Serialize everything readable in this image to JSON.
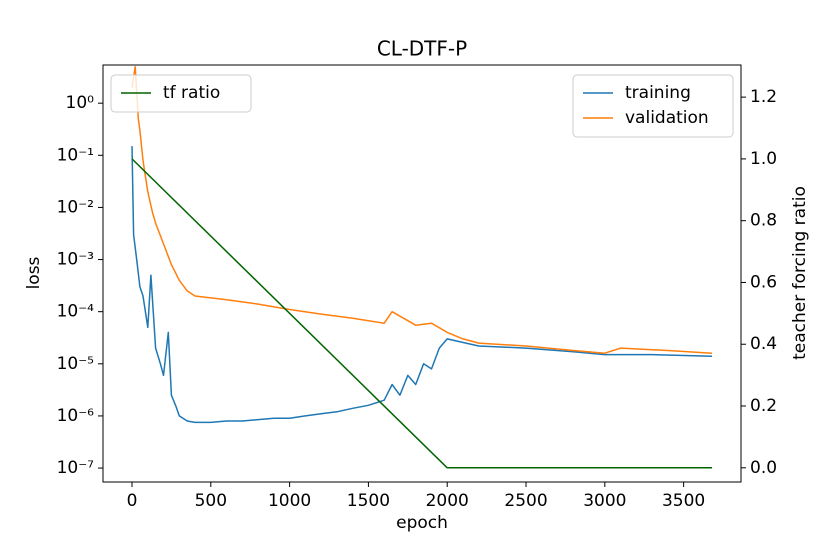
{
  "chart_data": {
    "type": "line",
    "title": "CL-DTF-P",
    "xlabel": "epoch",
    "ylabel": "loss",
    "y2label": "teacher forcing ratio",
    "xlim": [
      -184,
      3864
    ],
    "xticks": [
      0,
      500,
      1000,
      1500,
      2000,
      2500,
      3000,
      3500
    ],
    "ylim": [
      5.4e-08,
      5.4
    ],
    "yscale": "log",
    "yticks": [
      {
        "value": 1,
        "label": "10⁰"
      },
      {
        "value": 0.1,
        "label": "10⁻¹"
      },
      {
        "value": 0.01,
        "label": "10⁻²"
      },
      {
        "value": 0.001,
        "label": "10⁻³"
      },
      {
        "value": 0.0001,
        "label": "10⁻⁴"
      },
      {
        "value": 1e-05,
        "label": "10⁻⁵"
      },
      {
        "value": 1e-06,
        "label": "10⁻⁶"
      },
      {
        "value": 1e-07,
        "label": "10⁻⁷"
      }
    ],
    "y2lim": [
      -0.046,
      1.304
    ],
    "y2ticks": [
      {
        "value": 0,
        "label": "0.0"
      },
      0.2,
      0.4,
      0.6,
      0.8,
      {
        "value": 1,
        "label": "1.0"
      },
      1.2
    ],
    "legend": "upper right",
    "y2legend": "upper left",
    "series": [
      {
        "name": "training",
        "color": "#1f77b4",
        "x": [
          0,
          10,
          30,
          50,
          70,
          100,
          120,
          150,
          180,
          200,
          230,
          250,
          280,
          300,
          350,
          400,
          500,
          600,
          700,
          800,
          900,
          1000,
          1100,
          1200,
          1300,
          1400,
          1500,
          1600,
          1650,
          1700,
          1750,
          1800,
          1850,
          1900,
          1950,
          2000,
          2200,
          2500,
          2800,
          3000,
          3300,
          3680
        ],
        "values": [
          0.15,
          0.003,
          0.001,
          0.0003,
          0.0002,
          5e-05,
          0.0005,
          2e-05,
          1e-05,
          6e-06,
          4e-05,
          2.5e-06,
          1.5e-06,
          1e-06,
          8e-07,
          7.5e-07,
          7.5e-07,
          8e-07,
          8e-07,
          8.5e-07,
          9e-07,
          9e-07,
          1e-06,
          1.1e-06,
          1.2e-06,
          1.4e-06,
          1.6e-06,
          2e-06,
          4e-06,
          2.5e-06,
          6e-06,
          4e-06,
          1e-05,
          8e-06,
          2e-05,
          3e-05,
          2.2e-05,
          2e-05,
          1.7e-05,
          1.5e-05,
          1.5e-05,
          1.4e-05
        ]
      },
      {
        "name": "validation",
        "color": "#ff7f0e",
        "x": [
          0,
          20,
          40,
          50,
          70,
          80,
          100,
          130,
          150,
          200,
          250,
          300,
          350,
          400,
          600,
          800,
          1000,
          1200,
          1400,
          1600,
          1650,
          1800,
          1900,
          2000,
          2100,
          2200,
          2500,
          2800,
          3000,
          3100,
          3400,
          3680
        ],
        "values": [
          2,
          5,
          0.5,
          0.3,
          0.08,
          0.05,
          0.02,
          0.008,
          0.005,
          0.002,
          0.0008,
          0.0004,
          0.00025,
          0.0002,
          0.00017,
          0.00014,
          0.00011,
          9e-05,
          7.5e-05,
          6e-05,
          0.0001,
          5.5e-05,
          6e-05,
          4e-05,
          3e-05,
          2.5e-05,
          2.2e-05,
          1.8e-05,
          1.6e-05,
          2e-05,
          1.8e-05,
          1.6e-05
        ]
      },
      {
        "name": "tf ratio",
        "color": "#006400",
        "axis": "y2",
        "x": [
          0,
          2000,
          3680
        ],
        "values": [
          1,
          0,
          0
        ]
      }
    ]
  }
}
